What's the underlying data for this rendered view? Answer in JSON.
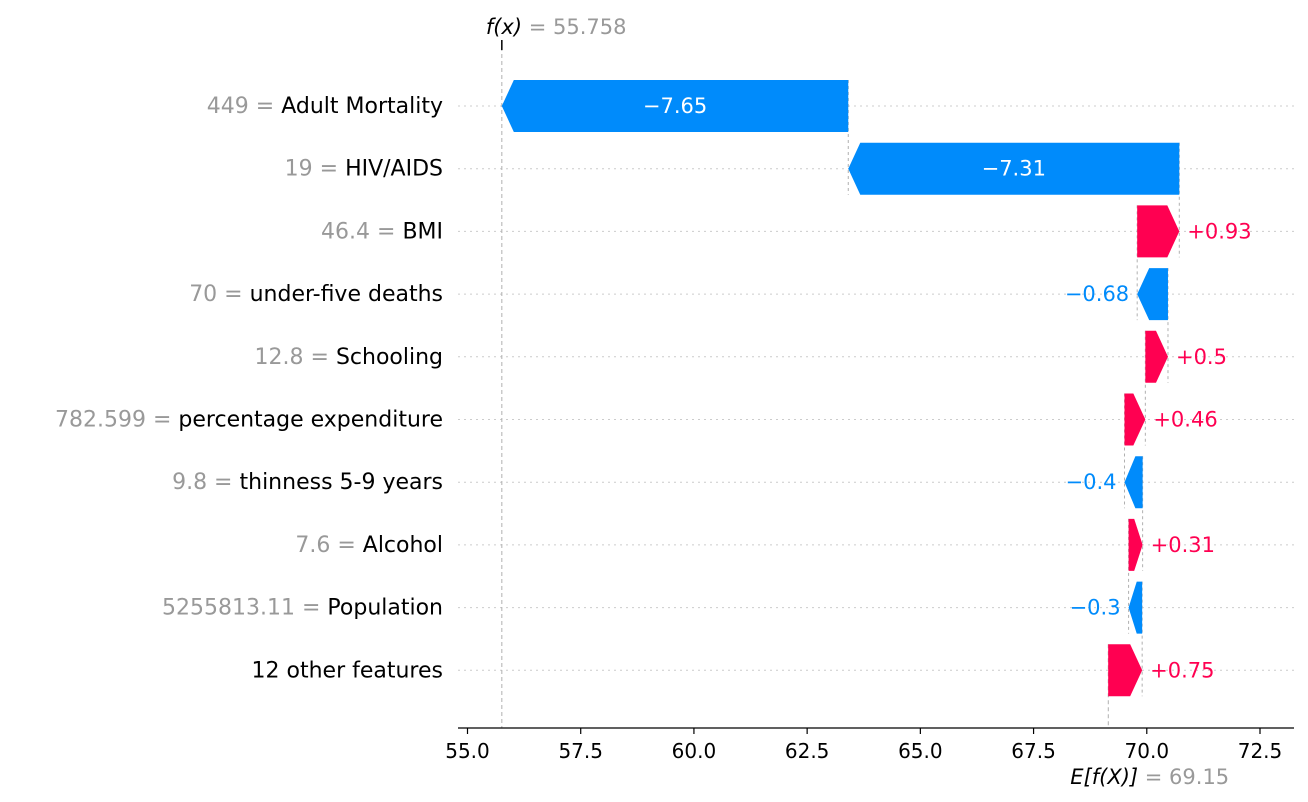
{
  "chart_data": {
    "type": "waterfall",
    "base_value": 69.15,
    "base_value_label": "= 69.15",
    "base_value_symbol": "E[f(X)]",
    "output_value": 55.758,
    "output_value_label": "= 55.758",
    "output_value_symbol": "f(x)",
    "xlim": [
      54.5,
      73.3
    ],
    "x_ticks": [
      55.0,
      57.5,
      60.0,
      62.5,
      65.0,
      67.5,
      70.0,
      72.5
    ],
    "x_tick_labels": [
      "55.0",
      "57.5",
      "60.0",
      "62.5",
      "65.0",
      "67.5",
      "70.0",
      "72.5"
    ],
    "features": [
      {
        "value_text": "449",
        "name": "Adult Mortality",
        "contribution": -7.65,
        "label": "−7.65",
        "label_inside": true
      },
      {
        "value_text": "19",
        "name": "HIV/AIDS",
        "contribution": -7.31,
        "label": "−7.31",
        "label_inside": true
      },
      {
        "value_text": "46.4",
        "name": "BMI",
        "contribution": 0.93,
        "label": "+0.93",
        "label_inside": false
      },
      {
        "value_text": "70",
        "name": "under-five deaths ",
        "contribution": -0.68,
        "label": "−0.68",
        "label_inside": false
      },
      {
        "value_text": "12.8",
        "name": "Schooling",
        "contribution": 0.5,
        "label": "+0.5",
        "label_inside": false
      },
      {
        "value_text": "782.599",
        "name": "percentage expenditure",
        "contribution": 0.46,
        "label": "+0.46",
        "label_inside": false
      },
      {
        "value_text": "9.8",
        "name": "thinness 5-9 years",
        "contribution": -0.4,
        "label": "−0.4",
        "label_inside": false
      },
      {
        "value_text": "7.6",
        "name": "Alcohol",
        "contribution": 0.31,
        "label": "+0.31",
        "label_inside": false
      },
      {
        "value_text": "5255813.11",
        "name": "Population",
        "contribution": -0.3,
        "label": "−0.3",
        "label_inside": false
      },
      {
        "value_text": "",
        "name": "12 other features",
        "contribution": 0.75,
        "label": "+0.75",
        "label_inside": false
      }
    ],
    "colors": {
      "positive": "#ff0051",
      "negative": "#008bfb",
      "grid": "#cccccc",
      "value_text": "#999999"
    }
  }
}
